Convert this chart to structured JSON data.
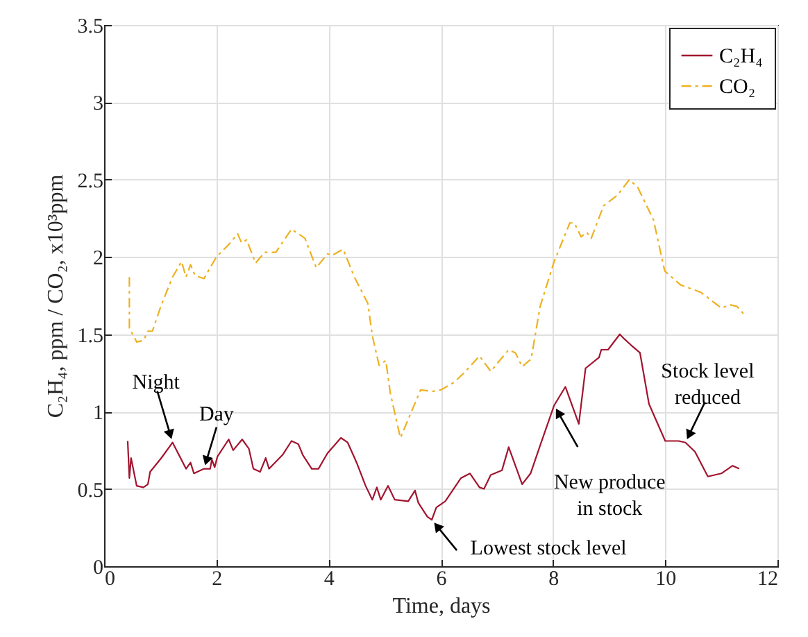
{
  "chart_data": {
    "type": "line",
    "xlabel": "Time, days",
    "ylabel": "C₂H₄, ppm / CO₂, x10³ppm",
    "xlim": [
      0,
      12
    ],
    "xticks": [
      0,
      2,
      4,
      6,
      8,
      10,
      12
    ],
    "ylim": [
      0,
      3.5
    ],
    "yticks": [
      0,
      0.5,
      1,
      1.5,
      2,
      2.5,
      3,
      3.5
    ],
    "grid": true,
    "legend": "top right",
    "marker": "none",
    "series": [
      {
        "name": "C₂H₄",
        "color": "#a2142f",
        "line_style": "solid",
        "x": [
          0.42,
          0.45,
          0.48,
          0.58,
          0.7,
          0.78,
          0.82,
          1.02,
          1.22,
          1.46,
          1.54,
          1.6,
          1.78,
          1.89,
          1.92,
          1.97,
          2.02,
          2.22,
          2.3,
          2.46,
          2.58,
          2.66,
          2.78,
          2.88,
          2.94,
          3.18,
          3.34,
          3.46,
          3.54,
          3.7,
          3.82,
          3.98,
          4.22,
          4.34,
          4.5,
          4.66,
          4.78,
          4.86,
          4.93,
          5.06,
          5.18,
          5.42,
          5.54,
          5.6,
          5.76,
          5.84,
          5.92,
          6.08,
          6.36,
          6.52,
          6.69,
          6.77,
          6.89,
          7.09,
          7.21,
          7.45,
          7.6,
          7.77,
          8.02,
          8.22,
          8.34,
          8.46,
          8.58,
          8.82,
          8.86,
          8.98,
          9.19,
          9.27,
          9.39,
          9.55,
          9.71,
          9.83,
          10.0,
          10.24,
          10.36,
          10.53,
          10.76,
          11.0,
          11.2,
          11.32
        ],
        "values": [
          0.81,
          0.57,
          0.7,
          0.52,
          0.51,
          0.53,
          0.61,
          0.7,
          0.8,
          0.63,
          0.67,
          0.6,
          0.63,
          0.63,
          0.69,
          0.64,
          0.71,
          0.82,
          0.75,
          0.82,
          0.76,
          0.63,
          0.61,
          0.7,
          0.63,
          0.72,
          0.81,
          0.79,
          0.72,
          0.63,
          0.63,
          0.73,
          0.83,
          0.8,
          0.67,
          0.52,
          0.43,
          0.51,
          0.43,
          0.52,
          0.43,
          0.42,
          0.49,
          0.41,
          0.32,
          0.3,
          0.38,
          0.42,
          0.57,
          0.6,
          0.51,
          0.5,
          0.59,
          0.62,
          0.77,
          0.53,
          0.6,
          0.78,
          1.04,
          1.16,
          1.04,
          0.92,
          1.28,
          1.35,
          1.4,
          1.4,
          1.5,
          1.47,
          1.43,
          1.38,
          1.05,
          0.95,
          0.81,
          0.81,
          0.8,
          0.74,
          0.58,
          0.6,
          0.65,
          0.63
        ]
      },
      {
        "name": "CO₂",
        "color": "#edb120",
        "line_style": "dashed",
        "x": [
          0.45,
          0.45,
          0.58,
          0.7,
          0.78,
          0.86,
          1.02,
          1.22,
          1.38,
          1.46,
          1.54,
          1.62,
          1.78,
          2.0,
          2.22,
          2.38,
          2.45,
          2.54,
          2.7,
          2.86,
          3.06,
          3.34,
          3.58,
          3.78,
          3.98,
          4.06,
          4.26,
          4.46,
          4.7,
          4.78,
          4.9,
          5.02,
          5.1,
          5.28,
          5.42,
          5.64,
          5.84,
          6.0,
          6.24,
          6.44,
          6.69,
          6.89,
          7.21,
          7.33,
          7.45,
          7.61,
          7.77,
          8.02,
          8.3,
          8.38,
          8.5,
          8.6,
          8.68,
          8.9,
          9.15,
          9.36,
          9.51,
          9.79,
          9.99,
          10.27,
          10.64,
          11.0,
          11.16,
          11.28,
          11.4
        ],
        "values": [
          1.87,
          1.54,
          1.45,
          1.46,
          1.52,
          1.52,
          1.69,
          1.87,
          1.97,
          1.87,
          1.95,
          1.88,
          1.86,
          2.0,
          2.08,
          2.15,
          2.09,
          2.11,
          1.96,
          2.03,
          2.03,
          2.18,
          2.12,
          1.93,
          2.02,
          2.01,
          2.05,
          1.87,
          1.7,
          1.49,
          1.3,
          1.33,
          1.12,
          0.83,
          0.95,
          1.14,
          1.13,
          1.14,
          1.19,
          1.26,
          1.36,
          1.26,
          1.4,
          1.38,
          1.29,
          1.34,
          1.68,
          1.97,
          2.22,
          2.22,
          2.13,
          2.16,
          2.12,
          2.33,
          2.4,
          2.5,
          2.45,
          2.24,
          1.91,
          1.82,
          1.77,
          1.67,
          1.69,
          1.68,
          1.63
        ]
      }
    ],
    "annotations": [
      {
        "text": "Night",
        "x": 1.22,
        "y": 0.8
      },
      {
        "text": "Day",
        "x": 1.78,
        "y": 0.63
      },
      {
        "text": "Lowest stock level",
        "x": 5.84,
        "y": 0.3
      },
      {
        "text": "New produce\nin stock",
        "x": 8.02,
        "y": 1.04
      },
      {
        "text": "Stock level\nreduced",
        "x": 10.36,
        "y": 0.8
      }
    ]
  }
}
